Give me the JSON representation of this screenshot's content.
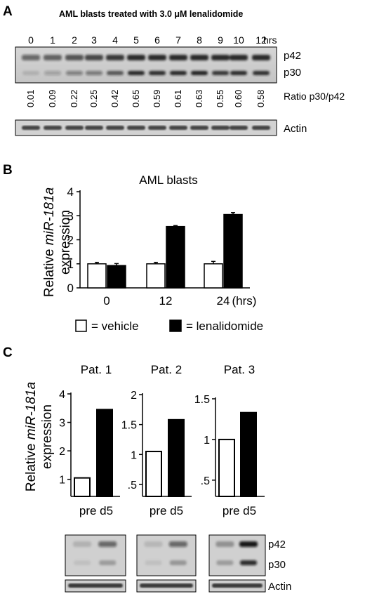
{
  "panels": {
    "a": {
      "letter": "A",
      "title": "AML blasts treated with 3.0 μM lenalidomide",
      "times": [
        "0",
        "1",
        "2",
        "3",
        "4",
        "5",
        "6",
        "7",
        "8",
        "9",
        "10",
        "12"
      ],
      "time_unit": "hrs",
      "ratios": [
        "0.01",
        "0.09",
        "0.22",
        "0.25",
        "0.42",
        "0.65",
        "0.59",
        "0.61",
        "0.63",
        "0.55",
        "0.60",
        "0.58"
      ],
      "ratio_label": "Ratio p30/p42",
      "band_p42": "p42",
      "band_p30": "p30",
      "band_actin": "Actin"
    },
    "b": {
      "letter": "B"
    },
    "c": {
      "letter": "C",
      "band_p42": "p42",
      "band_p30": "p30",
      "band_actin": "Actin"
    }
  },
  "chart_data": [
    {
      "type": "bar",
      "title": "AML blasts",
      "ylabel_pre": "Relative ",
      "ylabel_gene": "miR-181a",
      "ylabel_line2": "expression",
      "categories": [
        "0",
        "12",
        "24"
      ],
      "x_unit": "(hrs)",
      "ylim": [
        0,
        4
      ],
      "yticks": [
        "0",
        "1",
        "2",
        "3",
        "4"
      ],
      "series": [
        {
          "name": "= vehicle",
          "values": [
            1.0,
            1.0,
            1.0
          ],
          "errors": [
            0.06,
            0.06,
            0.1
          ],
          "color": "#ffffff"
        },
        {
          "name": "= lenalidomide",
          "values": [
            0.93,
            2.55,
            3.05
          ],
          "errors": [
            0.08,
            0.04,
            0.08
          ],
          "color": "#000000"
        }
      ],
      "legend": "bottom"
    },
    {
      "type": "bar",
      "title": "Pat. 1",
      "ylabel_pre": "Relative ",
      "ylabel_gene": "miR-181a",
      "ylabel_line2": "expression",
      "categories": [
        "pre",
        "d5"
      ],
      "values": [
        1.05,
        3.45
      ],
      "colors": [
        "#ffffff",
        "#000000"
      ],
      "ylim": [
        0.4,
        4.0
      ],
      "yticks": [
        {
          "v": 1,
          "t": "1"
        },
        {
          "v": 2,
          "t": "2"
        },
        {
          "v": 3,
          "t": "3"
        },
        {
          "v": 4,
          "t": "4"
        }
      ]
    },
    {
      "type": "bar",
      "title": "Pat. 2",
      "categories": [
        "pre",
        "d5"
      ],
      "values": [
        1.05,
        1.58
      ],
      "colors": [
        "#ffffff",
        "#000000"
      ],
      "ylim": [
        0.3,
        2.0
      ],
      "yticks": [
        {
          "v": 0.5,
          "t": ".5"
        },
        {
          "v": 1,
          "t": "1"
        },
        {
          "v": 1.5,
          "t": "1.5"
        },
        {
          "v": 2,
          "t": "2"
        }
      ]
    },
    {
      "type": "bar",
      "title": "Pat. 3",
      "categories": [
        "pre",
        "d5"
      ],
      "values": [
        1.0,
        1.33
      ],
      "colors": [
        "#ffffff",
        "#000000"
      ],
      "ylim": [
        0.3,
        1.5
      ],
      "yticks": [
        {
          "v": 0.5,
          "t": ".5"
        },
        {
          "v": 1,
          "t": "1"
        },
        {
          "v": 1.5,
          "t": "1.5"
        }
      ]
    }
  ]
}
